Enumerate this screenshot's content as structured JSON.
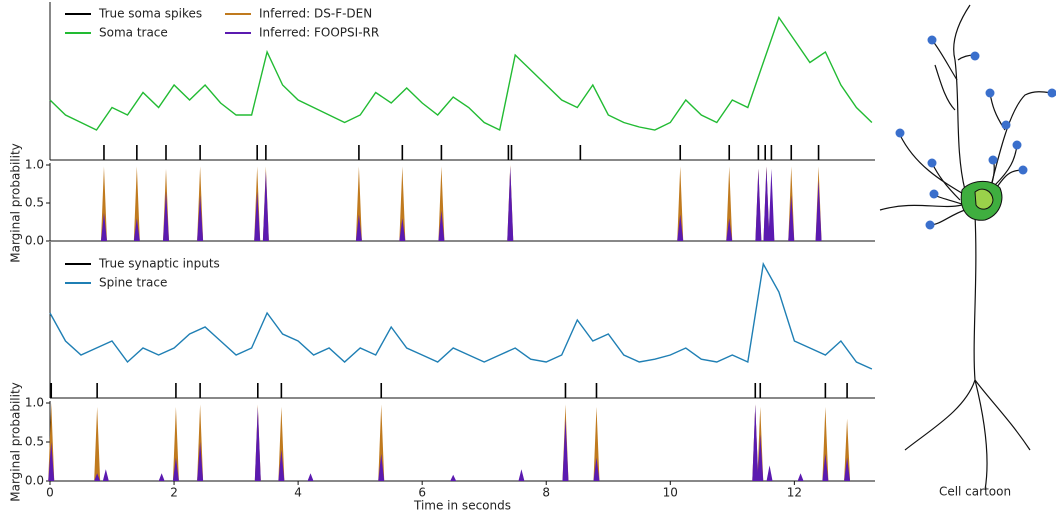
{
  "chart_data": [
    {
      "type": "line",
      "xlim": [
        0,
        13.3
      ],
      "ylim": [
        0,
        1
      ],
      "x": [
        0,
        0.25,
        0.5,
        0.75,
        1,
        1.25,
        1.5,
        1.75,
        2,
        2.25,
        2.5,
        2.75,
        3,
        3.25,
        3.5,
        3.75,
        4,
        4.25,
        4.5,
        4.75,
        5,
        5.25,
        5.5,
        5.75,
        6,
        6.25,
        6.5,
        6.75,
        7,
        7.25,
        7.5,
        7.75,
        8,
        8.25,
        8.5,
        8.75,
        9,
        9.25,
        9.5,
        9.75,
        10,
        10.25,
        10.5,
        10.75,
        11,
        11.25,
        11.5,
        11.75,
        12,
        12.25,
        12.5,
        12.75,
        13,
        13.25
      ],
      "series": [
        {
          "name": "Soma trace",
          "color": "#22bb33",
          "values": [
            0.4,
            0.3,
            0.25,
            0.2,
            0.35,
            0.3,
            0.45,
            0.35,
            0.5,
            0.4,
            0.5,
            0.38,
            0.3,
            0.3,
            0.72,
            0.5,
            0.4,
            0.35,
            0.3,
            0.25,
            0.3,
            0.45,
            0.38,
            0.48,
            0.38,
            0.3,
            0.42,
            0.35,
            0.25,
            0.2,
            0.7,
            0.6,
            0.5,
            0.4,
            0.35,
            0.5,
            0.3,
            0.25,
            0.22,
            0.2,
            0.25,
            0.4,
            0.3,
            0.25,
            0.4,
            0.35,
            0.65,
            0.95,
            0.8,
            0.65,
            0.72,
            0.5,
            0.35,
            0.25
          ]
        }
      ],
      "events": {
        "name": "True soma spikes",
        "color": "#000000",
        "x": [
          0.87,
          1.4,
          1.87,
          2.42,
          3.34,
          3.48,
          4.98,
          5.68,
          6.31,
          7.39,
          7.44,
          8.55,
          10.16,
          10.95,
          11.42,
          11.53,
          11.63,
          11.95,
          12.39
        ]
      }
    },
    {
      "type": "spike",
      "xlim": [
        0,
        13.3
      ],
      "ylim": [
        0,
        1
      ],
      "ylabel": "Marginal probability",
      "yticks": [
        {
          "value": 0,
          "label": "0.0"
        },
        0.5,
        {
          "value": 1,
          "label": "1.0"
        }
      ],
      "series": [
        {
          "name": "Inferred: DS-F-DEN",
          "color": "#c07a1e",
          "x": [
            0.87,
            1.4,
            1.87,
            2.42,
            3.34,
            3.48,
            4.98,
            5.68,
            6.31,
            7.42,
            10.16,
            10.95,
            11.42,
            11.55,
            11.63,
            11.95,
            12.39
          ],
          "values": [
            0.98,
            0.98,
            0.95,
            0.98,
            0.98,
            0.98,
            0.98,
            0.98,
            0.98,
            1,
            0.98,
            0.98,
            0.95,
            0.98,
            0.3,
            0.98,
            0.98
          ]
        },
        {
          "name": "Inferred: FOOPSI-RR",
          "color": "#5b1ab0",
          "x": [
            0.87,
            1.4,
            1.87,
            2.42,
            3.34,
            3.48,
            4.98,
            5.68,
            6.31,
            7.42,
            10.16,
            10.95,
            11.42,
            11.55,
            11.63,
            11.95,
            12.39
          ],
          "values": [
            0.37,
            0.3,
            0.65,
            0.6,
            0.65,
            0.92,
            0.35,
            0.3,
            0.4,
            0.98,
            0.35,
            0.3,
            0.95,
            0.98,
            0.95,
            0.6,
            0.8
          ]
        }
      ]
    },
    {
      "type": "line",
      "xlim": [
        0,
        13.3
      ],
      "ylim": [
        0,
        1
      ],
      "x": [
        0,
        0.25,
        0.5,
        0.75,
        1,
        1.25,
        1.5,
        1.75,
        2,
        2.25,
        2.5,
        2.75,
        3,
        3.25,
        3.5,
        3.75,
        4,
        4.25,
        4.5,
        4.75,
        5,
        5.25,
        5.5,
        5.75,
        6,
        6.25,
        6.5,
        6.75,
        7,
        7.25,
        7.5,
        7.75,
        8,
        8.25,
        8.5,
        8.75,
        9,
        9.25,
        9.5,
        9.75,
        10,
        10.25,
        10.5,
        10.75,
        11,
        11.25,
        11.5,
        11.75,
        12,
        12.25,
        12.5,
        12.75,
        13,
        13.25
      ],
      "series": [
        {
          "name": "Spine trace",
          "color": "#1f7fb4",
          "values": [
            0.55,
            0.35,
            0.25,
            0.3,
            0.35,
            0.2,
            0.3,
            0.25,
            0.3,
            0.4,
            0.45,
            0.35,
            0.25,
            0.3,
            0.55,
            0.4,
            0.35,
            0.25,
            0.3,
            0.2,
            0.3,
            0.25,
            0.45,
            0.3,
            0.25,
            0.2,
            0.3,
            0.25,
            0.2,
            0.25,
            0.3,
            0.22,
            0.2,
            0.25,
            0.5,
            0.35,
            0.4,
            0.25,
            0.2,
            0.22,
            0.25,
            0.3,
            0.22,
            0.2,
            0.25,
            0.2,
            0.9,
            0.7,
            0.35,
            0.3,
            0.25,
            0.35,
            0.2,
            0.15
          ]
        }
      ],
      "events": {
        "name": "True synaptic inputs",
        "color": "#000000",
        "x": [
          0.02,
          0.76,
          2.03,
          2.42,
          3.35,
          3.73,
          5.34,
          8.31,
          8.81,
          11.37,
          11.45,
          12.5,
          12.85
        ]
      }
    },
    {
      "type": "spike",
      "xlim": [
        0,
        13.3
      ],
      "ylim": [
        0,
        1
      ],
      "ylabel": "Marginal probability",
      "xlabel": "Time in seconds",
      "yticks": [
        {
          "value": 0,
          "label": "0.0"
        },
        0.5,
        {
          "value": 1,
          "label": "1.0"
        }
      ],
      "xticks": [
        0,
        2,
        4,
        6,
        8,
        10,
        12
      ],
      "series": [
        {
          "name": "Inferred: DS-F-DEN",
          "color": "#c07a1e",
          "x": [
            0.02,
            0.76,
            2.03,
            2.42,
            3.35,
            3.73,
            5.34,
            8.31,
            8.81,
            11.37,
            11.45,
            12.5,
            12.85
          ],
          "values": [
            1,
            0.95,
            0.95,
            0.98,
            0.98,
            0.95,
            0.98,
            0.98,
            0.95,
            0.98,
            0.95,
            0.95,
            0.8
          ]
        },
        {
          "name": "Inferred: FOOPSI-RR",
          "color": "#5b1ab0",
          "x": [
            0.02,
            0.76,
            0.9,
            1.8,
            2.03,
            2.42,
            3.35,
            3.73,
            4.2,
            5.34,
            6.5,
            7.6,
            8.31,
            8.81,
            11.37,
            11.45,
            11.6,
            12.1,
            12.5,
            12.85
          ],
          "values": [
            0.5,
            0.1,
            0.15,
            0.1,
            0.3,
            0.5,
            0.95,
            0.4,
            0.1,
            0.35,
            0.08,
            0.15,
            0.8,
            0.3,
            0.98,
            0.6,
            0.2,
            0.1,
            0.35,
            0.3
          ]
        }
      ]
    }
  ],
  "cell_cartoon": {
    "label": "Cell cartoon"
  }
}
